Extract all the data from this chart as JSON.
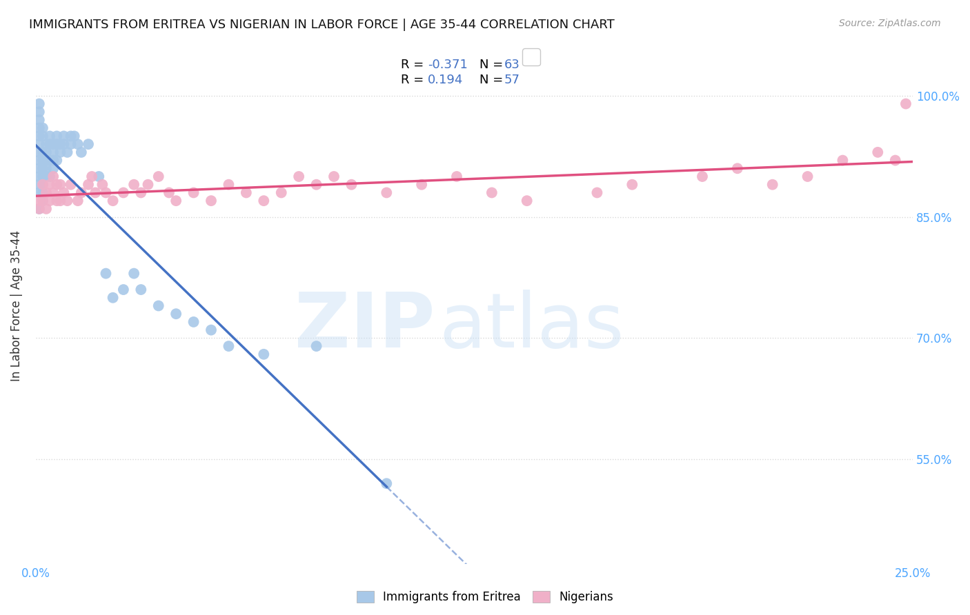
{
  "title": "IMMIGRANTS FROM ERITREA VS NIGERIAN IN LABOR FORCE | AGE 35-44 CORRELATION CHART",
  "source": "Source: ZipAtlas.com",
  "ylabel": "In Labor Force | Age 35-44",
  "xlim": [
    0.0,
    0.25
  ],
  "ylim": [
    0.42,
    1.06
  ],
  "xticks": [
    0.0,
    0.05,
    0.1,
    0.15,
    0.2,
    0.25
  ],
  "xticklabels": [
    "0.0%",
    "",
    "",
    "",
    "",
    "25.0%"
  ],
  "yticks": [
    0.55,
    0.7,
    0.85,
    1.0
  ],
  "yticklabels": [
    "55.0%",
    "70.0%",
    "85.0%",
    "100.0%"
  ],
  "legend_labels": [
    "Immigrants from Eritrea",
    "Nigerians"
  ],
  "eritrea_color": "#a8c8e8",
  "nigerian_color": "#f0b0c8",
  "eritrea_line_color": "#4472c4",
  "nigerian_line_color": "#e05080",
  "R_eritrea": -0.371,
  "N_eritrea": 63,
  "R_nigerian": 0.194,
  "N_nigerian": 57,
  "background_color": "#ffffff",
  "grid_color": "#d8d8d8",
  "title_fontsize": 13,
  "tick_color_y": "#4da6ff",
  "tick_color_x": "#4da6ff",
  "eritrea_x": [
    0.001,
    0.001,
    0.001,
    0.001,
    0.001,
    0.001,
    0.001,
    0.001,
    0.001,
    0.001,
    0.001,
    0.001,
    0.001,
    0.002,
    0.002,
    0.002,
    0.002,
    0.002,
    0.002,
    0.002,
    0.002,
    0.002,
    0.003,
    0.003,
    0.003,
    0.003,
    0.003,
    0.004,
    0.004,
    0.004,
    0.004,
    0.005,
    0.005,
    0.005,
    0.005,
    0.006,
    0.006,
    0.006,
    0.007,
    0.007,
    0.008,
    0.008,
    0.009,
    0.01,
    0.01,
    0.011,
    0.012,
    0.013,
    0.015,
    0.018,
    0.02,
    0.022,
    0.025,
    0.028,
    0.03,
    0.035,
    0.04,
    0.045,
    0.05,
    0.055,
    0.065,
    0.08,
    0.1
  ],
  "eritrea_y": [
    0.99,
    0.98,
    0.97,
    0.96,
    0.95,
    0.94,
    0.93,
    0.92,
    0.91,
    0.9,
    0.89,
    0.88,
    0.86,
    0.96,
    0.95,
    0.93,
    0.92,
    0.91,
    0.9,
    0.89,
    0.88,
    0.87,
    0.94,
    0.93,
    0.92,
    0.91,
    0.9,
    0.95,
    0.94,
    0.92,
    0.9,
    0.94,
    0.93,
    0.92,
    0.91,
    0.95,
    0.94,
    0.92,
    0.94,
    0.93,
    0.95,
    0.94,
    0.93,
    0.95,
    0.94,
    0.95,
    0.94,
    0.93,
    0.94,
    0.9,
    0.78,
    0.75,
    0.76,
    0.78,
    0.76,
    0.74,
    0.73,
    0.72,
    0.71,
    0.69,
    0.68,
    0.69,
    0.52
  ],
  "nigerian_x": [
    0.001,
    0.001,
    0.002,
    0.002,
    0.003,
    0.003,
    0.004,
    0.004,
    0.005,
    0.005,
    0.006,
    0.006,
    0.007,
    0.007,
    0.008,
    0.009,
    0.01,
    0.012,
    0.013,
    0.015,
    0.016,
    0.017,
    0.019,
    0.02,
    0.022,
    0.025,
    0.028,
    0.03,
    0.032,
    0.035,
    0.038,
    0.04,
    0.045,
    0.05,
    0.055,
    0.06,
    0.065,
    0.07,
    0.075,
    0.08,
    0.085,
    0.09,
    0.1,
    0.11,
    0.12,
    0.13,
    0.14,
    0.16,
    0.17,
    0.19,
    0.2,
    0.21,
    0.22,
    0.23,
    0.24,
    0.245,
    0.248
  ],
  "nigerian_y": [
    0.87,
    0.86,
    0.89,
    0.87,
    0.88,
    0.86,
    0.89,
    0.87,
    0.9,
    0.88,
    0.89,
    0.87,
    0.89,
    0.87,
    0.88,
    0.87,
    0.89,
    0.87,
    0.88,
    0.89,
    0.9,
    0.88,
    0.89,
    0.88,
    0.87,
    0.88,
    0.89,
    0.88,
    0.89,
    0.9,
    0.88,
    0.87,
    0.88,
    0.87,
    0.89,
    0.88,
    0.87,
    0.88,
    0.9,
    0.89,
    0.9,
    0.89,
    0.88,
    0.89,
    0.9,
    0.88,
    0.87,
    0.88,
    0.89,
    0.9,
    0.91,
    0.89,
    0.9,
    0.92,
    0.93,
    0.92,
    0.99
  ]
}
